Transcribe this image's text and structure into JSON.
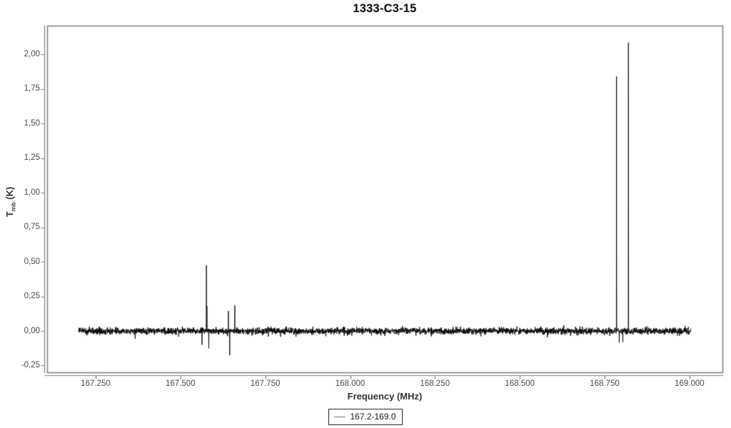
{
  "legend": {
    "label": "167.2-169.0",
    "line_color": "#808080"
  },
  "colors": {
    "background": "#ffffff",
    "axis": "#7d7d7d",
    "tick_label": "#4a4a4a",
    "title": "#0a0a0a",
    "data_line": "#000000",
    "legend_border": "#2a2a2a"
  },
  "chart_data": {
    "type": "line",
    "title": "1333-C3-15",
    "xlabel": "Frequency (MHz)",
    "ylabel": "Tmb (K)",
    "ylabel_parts": {
      "main": "T",
      "sub": "mb",
      "unit": " (K)"
    },
    "xlim": [
      167.107,
      169.097
    ],
    "ylim": [
      -0.299,
      2.207
    ],
    "x_ticks": [
      167.25,
      167.5,
      167.75,
      168.0,
      168.25,
      168.5,
      168.75,
      169.0
    ],
    "x_tick_labels": [
      "167.250",
      "167.500",
      "167.750",
      "168.000",
      "168.250",
      "168.500",
      "168.750",
      "169.000"
    ],
    "y_ticks": [
      -0.25,
      0.0,
      0.25,
      0.5,
      0.75,
      1.0,
      1.25,
      1.5,
      1.75,
      2.0
    ],
    "y_tick_labels": [
      "-0,25",
      "0,00",
      "0,25",
      "0,50",
      "0,75",
      "1,00",
      "1,25",
      "1,50",
      "1,75",
      "2,00"
    ],
    "grid": false,
    "legend_position": "bottom-center",
    "series": [
      {
        "name": "167.2-169.0",
        "color": "#000000",
        "x_range": [
          167.2,
          169.004
        ],
        "baseline": 0.0,
        "noise_sigma": 0.012,
        "n_points": 3600,
        "peaks": [
          {
            "x": 167.5765,
            "y": 0.475
          },
          {
            "x": 167.578,
            "y": 0.18
          },
          {
            "x": 167.641,
            "y": 0.145
          },
          {
            "x": 167.66,
            "y": 0.185
          },
          {
            "x": 168.785,
            "y": 1.84
          },
          {
            "x": 168.82,
            "y": 2.085
          },
          {
            "x": 167.5635,
            "y": -0.1
          },
          {
            "x": 167.5835,
            "y": -0.125
          },
          {
            "x": 167.645,
            "y": -0.175
          },
          {
            "x": 168.793,
            "y": -0.085
          },
          {
            "x": 168.8035,
            "y": -0.08
          }
        ]
      }
    ]
  }
}
